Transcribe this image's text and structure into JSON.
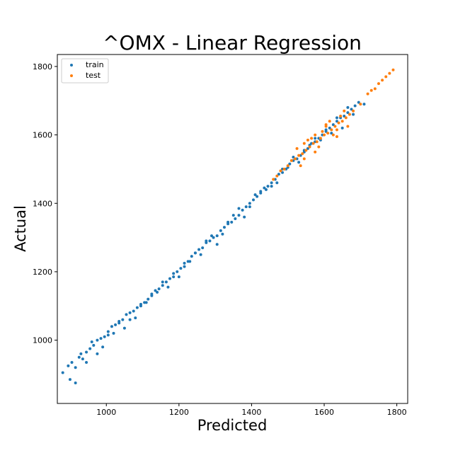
{
  "chart_data": {
    "type": "scatter",
    "title": "^OMX - Linear Regression",
    "xlabel": "Predicted",
    "ylabel": "Actual",
    "xlim": [
      865,
      1830
    ],
    "ylim": [
      815,
      1835
    ],
    "x_ticks": [
      1000,
      1200,
      1400,
      1600,
      1800
    ],
    "y_ticks": [
      1000,
      1200,
      1400,
      1600,
      1800
    ],
    "x_tick_labels": [
      "1000",
      "1200",
      "1400",
      "1600",
      "1800"
    ],
    "y_tick_labels": [
      "1000",
      "1200",
      "1400",
      "1600",
      "1800"
    ],
    "grid": false,
    "legend_position": "top-left",
    "series": [
      {
        "name": "train",
        "color": "#1f77b4",
        "x": [
          880,
          895,
          905,
          915,
          925,
          935,
          945,
          955,
          965,
          975,
          985,
          995,
          1005,
          1015,
          1025,
          1035,
          1045,
          1055,
          1065,
          1075,
          1085,
          1095,
          1105,
          1115,
          1125,
          1135,
          1145,
          1155,
          1165,
          1175,
          1185,
          1195,
          1205,
          1215,
          1225,
          1235,
          1245,
          1255,
          1265,
          1275,
          1285,
          1295,
          1305,
          1315,
          1325,
          1335,
          1345,
          1355,
          1365,
          1375,
          1385,
          1395,
          1405,
          1415,
          1425,
          1435,
          1445,
          1455,
          1465,
          1475,
          1485,
          1495,
          1505,
          1515,
          1525,
          1535,
          1545,
          1555,
          1565,
          1575,
          1585,
          1595,
          1605,
          1615,
          1625,
          1635,
          1645,
          1655,
          1665,
          1675,
          1685,
          1695,
          900,
          930,
          960,
          990,
          1020,
          1050,
          1080,
          1110,
          1140,
          1170,
          1200,
          1230,
          1260,
          1290,
          1320,
          1350,
          1380,
          1410,
          1440,
          1470,
          1500,
          1530,
          1560,
          1590,
          1620,
          1650,
          1680,
          1710,
          915,
          945,
          975,
          1005,
          1035,
          1065,
          1095,
          1125,
          1155,
          1185,
          1215,
          1245,
          1275,
          1305,
          1335,
          1365,
          1395,
          1425,
          1455,
          1485,
          1515,
          1545,
          1575,
          1605,
          1635,
          1665
        ],
        "y": [
          905,
          925,
          935,
          920,
          950,
          945,
          965,
          975,
          985,
          1000,
          1005,
          1010,
          1025,
          1040,
          1045,
          1055,
          1060,
          1075,
          1080,
          1085,
          1095,
          1100,
          1110,
          1120,
          1135,
          1145,
          1150,
          1160,
          1170,
          1180,
          1185,
          1200,
          1210,
          1225,
          1230,
          1245,
          1255,
          1265,
          1270,
          1285,
          1290,
          1300,
          1305,
          1320,
          1330,
          1340,
          1345,
          1355,
          1365,
          1380,
          1390,
          1400,
          1410,
          1420,
          1430,
          1445,
          1450,
          1460,
          1470,
          1485,
          1490,
          1500,
          1515,
          1525,
          1530,
          1540,
          1555,
          1560,
          1575,
          1580,
          1590,
          1600,
          1610,
          1620,
          1630,
          1640,
          1650,
          1655,
          1665,
          1675,
          1685,
          1695,
          885,
          960,
          995,
          980,
          1020,
          1035,
          1065,
          1110,
          1140,
          1155,
          1185,
          1230,
          1250,
          1305,
          1310,
          1365,
          1360,
          1425,
          1440,
          1460,
          1505,
          1520,
          1570,
          1585,
          1605,
          1620,
          1660,
          1690,
          875,
          935,
          960,
          1015,
          1050,
          1060,
          1105,
          1130,
          1170,
          1195,
          1215,
          1255,
          1290,
          1280,
          1345,
          1385,
          1390,
          1435,
          1450,
          1500,
          1535,
          1550,
          1590,
          1615,
          1650,
          1680
        ]
      },
      {
        "name": "test",
        "color": "#ff7f0e",
        "x": [
          1460,
          1470,
          1480,
          1490,
          1500,
          1510,
          1520,
          1530,
          1540,
          1550,
          1560,
          1570,
          1580,
          1590,
          1600,
          1610,
          1620,
          1630,
          1640,
          1650,
          1660,
          1670,
          1680,
          1700,
          1720,
          1730,
          1740,
          1750,
          1760,
          1770,
          1780,
          1790,
          1525,
          1545,
          1565,
          1585,
          1605,
          1625,
          1645,
          1665,
          1535,
          1555,
          1575,
          1595,
          1615,
          1635,
          1655,
          1545,
          1575,
          1605,
          1635
        ],
        "y": [
          1470,
          1480,
          1495,
          1500,
          1510,
          1525,
          1530,
          1540,
          1545,
          1555,
          1565,
          1575,
          1580,
          1590,
          1600,
          1605,
          1615,
          1625,
          1635,
          1640,
          1650,
          1660,
          1670,
          1690,
          1720,
          1730,
          1735,
          1750,
          1760,
          1770,
          1780,
          1790,
          1560,
          1530,
          1590,
          1565,
          1625,
          1600,
          1655,
          1625,
          1510,
          1585,
          1550,
          1610,
          1640,
          1595,
          1670,
          1575,
          1600,
          1630,
          1615
        ]
      }
    ]
  }
}
